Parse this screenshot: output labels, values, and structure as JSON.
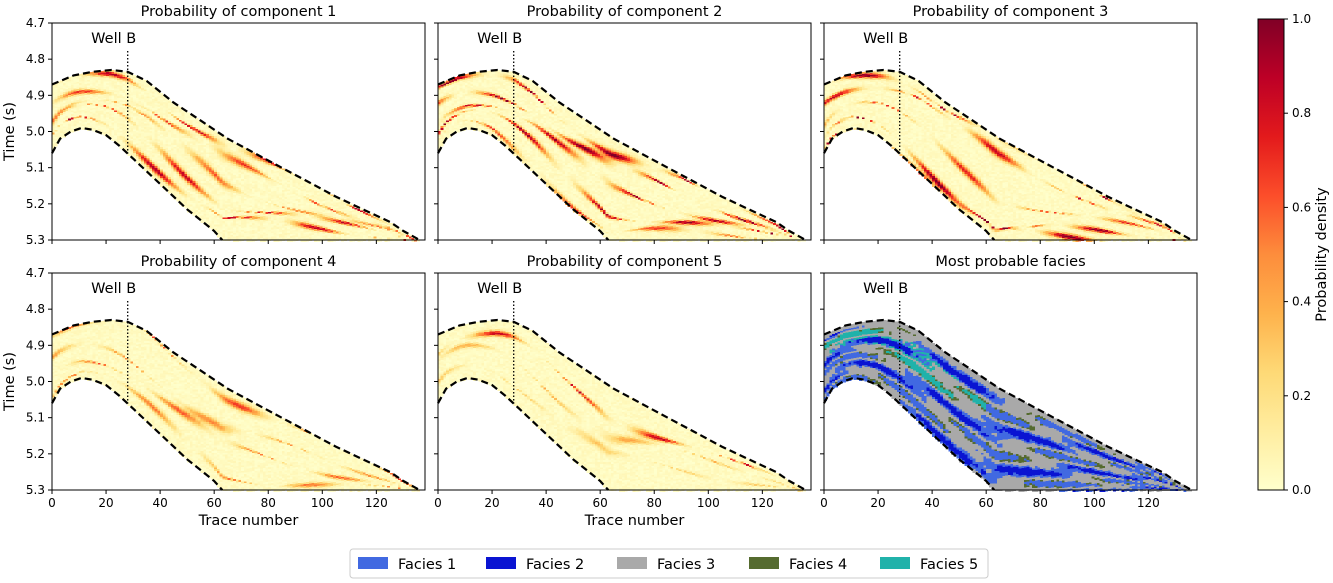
{
  "chart_data": {
    "type": "heatmap",
    "x_range": [
      0,
      138
    ],
    "y_range": [
      4.7,
      5.3
    ],
    "x_ticks": [
      0,
      20,
      40,
      60,
      80,
      100,
      120
    ],
    "y_ticks": [
      4.7,
      4.8,
      4.9,
      5.0,
      5.1,
      5.2,
      5.3
    ],
    "x_tick_labels": [
      "0",
      "20",
      "40",
      "60",
      "80",
      "100",
      "120"
    ],
    "y_tick_labels": [
      "4.7",
      "4.8",
      "4.9",
      "5.0",
      "5.1",
      "5.2",
      "5.3"
    ],
    "xlabel": "Trace number",
    "ylabel": "Time (s)",
    "well_label": "Well B",
    "well_trace": 28,
    "top_boundary": {
      "x": [
        0,
        8,
        15,
        22,
        28,
        35,
        45,
        55,
        65,
        75,
        85,
        95,
        105,
        115,
        125,
        130,
        136
      ],
      "y": [
        4.87,
        4.845,
        4.835,
        4.83,
        4.835,
        4.86,
        4.92,
        4.97,
        5.02,
        5.06,
        5.1,
        5.14,
        5.18,
        5.215,
        5.25,
        5.275,
        5.3
      ]
    },
    "bottom_boundary": {
      "x": [
        0,
        3,
        7,
        11,
        15,
        20,
        25,
        30,
        35,
        40,
        45,
        50,
        55,
        60,
        63
      ],
      "y": [
        5.06,
        5.02,
        5.0,
        4.99,
        4.995,
        5.01,
        5.04,
        5.075,
        5.11,
        5.145,
        5.18,
        5.215,
        5.245,
        5.275,
        5.3
      ]
    },
    "panels": [
      {
        "title": "Probability of component 1",
        "kind": "probability",
        "seed": 11,
        "bands": [
          [
            0.05,
            0.9
          ],
          [
            0.25,
            0.7
          ],
          [
            0.45,
            0.6
          ],
          [
            0.62,
            0.85
          ],
          [
            0.8,
            0.9
          ]
        ]
      },
      {
        "title": "Probability of component 2",
        "kind": "probability",
        "seed": 23,
        "bands": [
          [
            0.1,
            1.0
          ],
          [
            0.3,
            1.0
          ],
          [
            0.5,
            0.9
          ],
          [
            0.7,
            0.95
          ],
          [
            0.9,
            0.7
          ]
        ]
      },
      {
        "title": "Probability of component 3",
        "kind": "probability",
        "seed": 37,
        "bands": [
          [
            0.02,
            1.0
          ],
          [
            0.2,
            0.85
          ],
          [
            0.55,
            0.75
          ],
          [
            0.85,
            1.0
          ],
          [
            0.95,
            1.0
          ]
        ]
      },
      {
        "title": "Probability of component 4",
        "kind": "probability",
        "seed": 41,
        "bands": [
          [
            0.03,
            0.7
          ],
          [
            0.4,
            0.5
          ],
          [
            0.6,
            0.6
          ],
          [
            0.85,
            0.55
          ]
        ]
      },
      {
        "title": "Probability of component 5",
        "kind": "probability",
        "seed": 53,
        "bands": [
          [
            0.25,
            0.85
          ],
          [
            0.45,
            0.4
          ],
          [
            0.7,
            0.3
          ]
        ]
      },
      {
        "title": "Most probable facies",
        "kind": "facies",
        "seed": 67,
        "bands": []
      }
    ],
    "colorbar": {
      "label": "Probability density",
      "range": [
        0.0,
        1.0
      ],
      "ticks": [
        0.0,
        0.2,
        0.4,
        0.6,
        0.8,
        1.0
      ],
      "tick_labels": [
        "0.0",
        "0.2",
        "0.4",
        "0.6",
        "0.8",
        "1.0"
      ],
      "colormap": "YlOrRd",
      "stops": [
        "#ffffcc",
        "#ffeda0",
        "#fed976",
        "#feb24c",
        "#fd8d3c",
        "#fc4e2a",
        "#e31a1c",
        "#bd0026",
        "#800026"
      ]
    },
    "legend": {
      "placement": "bottom-center",
      "entries": [
        {
          "label": "Facies 1",
          "color": "#4169e1"
        },
        {
          "label": "Facies 2",
          "color": "#0a14d2"
        },
        {
          "label": "Facies 3",
          "color": "#a9a9a9"
        },
        {
          "label": "Facies 4",
          "color": "#556b2f"
        },
        {
          "label": "Facies 5",
          "color": "#20b2aa"
        }
      ]
    }
  }
}
